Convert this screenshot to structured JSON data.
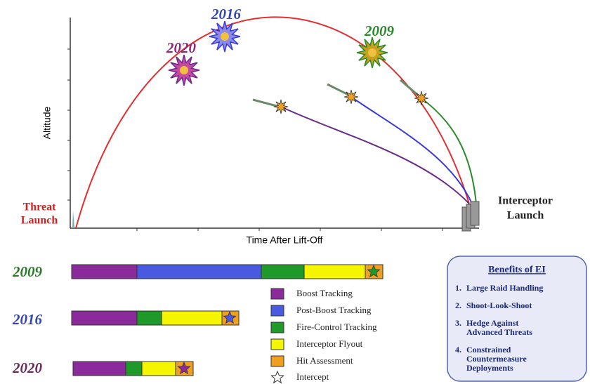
{
  "axes": {
    "y_label": "Altitude",
    "x_label": "Time After Lift-Off"
  },
  "launch_labels": {
    "threat": [
      "Threat",
      "Launch"
    ],
    "interceptor": [
      "Interceptor",
      "Launch"
    ]
  },
  "intercept_years": [
    "2020",
    "2016",
    "2009"
  ],
  "timelines": [
    {
      "year": "2009"
    },
    {
      "year": "2016"
    },
    {
      "year": "2020"
    }
  ],
  "legend": [
    "Boost Tracking",
    "Post-Boost Tracking",
    "Fire-Control Tracking",
    "Interceptor Flyout",
    "Hit Assessment",
    "Intercept"
  ],
  "benefits": {
    "title": "Benefits of EI",
    "items": [
      [
        "1.",
        "Large Raid Handling"
      ],
      [
        "2.",
        "Shoot-Look-Shoot"
      ],
      [
        "3.",
        "Hedge Against",
        "Advanced Threats"
      ],
      [
        "4.",
        "Constrained",
        "Countermeasure",
        "Deployments"
      ]
    ]
  }
}
